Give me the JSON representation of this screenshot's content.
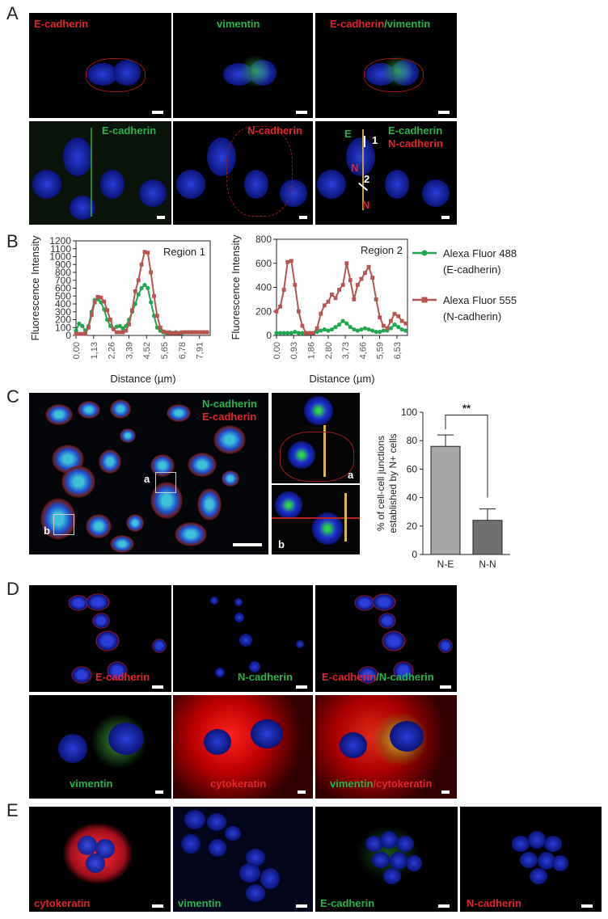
{
  "panels": {
    "A": {
      "letter": "A",
      "row1": [
        "E-cadherin",
        "vimentin",
        "E-cadherin",
        "/vimentin"
      ],
      "row2": [
        "E-cadherin",
        "N-cadherin",
        "E-cadherin",
        "N-cadherin"
      ],
      "markers": {
        "E": "E",
        "N1": "N",
        "N2": "N",
        "r1": "1",
        "r2": "2"
      }
    },
    "B": {
      "letter": "B"
    },
    "C": {
      "letter": "C",
      "labels": {
        "top": "N-cadherin",
        "bottom": "E-cadherin",
        "box_a": "a",
        "box_b": "b",
        "inset_a": "a",
        "inset_b": "b"
      }
    },
    "D": {
      "letter": "D",
      "row1": [
        "E-cadherin",
        "N-cadherin",
        "E-cadherin",
        "/N-cadherin"
      ],
      "row2": [
        "vimentin",
        "cytokeratin",
        "vimentin",
        "/cytokeratin"
      ]
    },
    "E": {
      "letter": "E",
      "labels": [
        "cytokeratin",
        "vimentin",
        "E-cadherin",
        "N-cadherin"
      ]
    }
  },
  "chart_data": [
    {
      "type": "line",
      "title": "Region 1",
      "ylabel": "Fluorescence Intensity",
      "xlabel": "Distance (µm)",
      "ylim": [
        0,
        1200
      ],
      "yticks": [
        "0",
        "100",
        "200",
        "300",
        "400",
        "500",
        "600",
        "700",
        "800",
        "900",
        "1000",
        "1100",
        "1200"
      ],
      "xticks": [
        "0,00",
        "1,13",
        "2,26",
        "3,39",
        "4,52",
        "5,65",
        "6,78",
        "7,91"
      ],
      "xlim": [
        0,
        8.6
      ],
      "series": [
        {
          "name": "Alexa Fluor 488 (E-cadherin)",
          "color": "#1fa84f",
          "marker": "circle",
          "x": [
            0,
            0.2,
            0.4,
            0.6,
            0.8,
            1.0,
            1.2,
            1.4,
            1.6,
            1.8,
            2.0,
            2.2,
            2.4,
            2.6,
            2.8,
            3.0,
            3.2,
            3.4,
            3.6,
            3.8,
            4.0,
            4.2,
            4.4,
            4.6,
            4.8,
            5.0,
            5.2,
            5.4,
            5.6,
            5.8,
            6.0,
            6.2,
            6.4,
            6.6,
            6.8,
            7.0,
            7.2,
            7.4,
            7.6,
            7.8,
            8.0,
            8.2,
            8.4
          ],
          "y": [
            60,
            150,
            120,
            60,
            120,
            300,
            450,
            460,
            420,
            330,
            200,
            120,
            80,
            110,
            120,
            90,
            120,
            200,
            300,
            400,
            520,
            600,
            640,
            600,
            420,
            250,
            100,
            60,
            40,
            30,
            40,
            30,
            40,
            30,
            30,
            40,
            40,
            40,
            40,
            40,
            40,
            40,
            40
          ]
        },
        {
          "name": "Alexa Fluor 555 (N-cadherin)",
          "color": "#b85450",
          "marker": "square",
          "x": [
            0,
            0.2,
            0.4,
            0.6,
            0.8,
            1.0,
            1.2,
            1.4,
            1.6,
            1.8,
            2.0,
            2.2,
            2.4,
            2.6,
            2.8,
            3.0,
            3.2,
            3.4,
            3.6,
            3.8,
            4.0,
            4.2,
            4.4,
            4.6,
            4.8,
            5.0,
            5.2,
            5.4,
            5.6,
            5.8,
            6.0,
            6.2,
            6.4,
            6.6,
            6.8,
            7.0,
            7.2,
            7.4,
            7.6,
            7.8,
            8.0,
            8.2,
            8.4
          ],
          "y": [
            20,
            20,
            20,
            20,
            100,
            260,
            420,
            490,
            480,
            430,
            320,
            200,
            80,
            40,
            40,
            40,
            60,
            140,
            320,
            560,
            700,
            900,
            1060,
            1050,
            800,
            500,
            250,
            100,
            50,
            40,
            30,
            30,
            30,
            30,
            40,
            40,
            40,
            40,
            40,
            40,
            40,
            40,
            40
          ]
        }
      ]
    },
    {
      "type": "line",
      "title": "Region 2",
      "ylabel": "Fluorescence Intensity",
      "xlabel": "Distance (µm)",
      "ylim": [
        0,
        800
      ],
      "yticks": [
        "0",
        "200",
        "400",
        "600",
        "800"
      ],
      "xticks": [
        "0,00",
        "0,93",
        "1,86",
        "2,80",
        "3,73",
        "4,66",
        "5,59",
        "6,53"
      ],
      "xlim": [
        0,
        7.1
      ],
      "series": [
        {
          "name": "Alexa Fluor 488 (E-cadherin)",
          "color": "#1fa84f",
          "marker": "circle",
          "x": [
            0,
            0.2,
            0.4,
            0.6,
            0.8,
            1.0,
            1.2,
            1.4,
            1.6,
            1.8,
            2.0,
            2.2,
            2.4,
            2.6,
            2.8,
            3.0,
            3.2,
            3.4,
            3.6,
            3.8,
            4.0,
            4.2,
            4.4,
            4.6,
            4.8,
            5.0,
            5.2,
            5.4,
            5.6,
            5.8,
            6.0,
            6.2,
            6.4,
            6.6,
            6.8,
            7.0
          ],
          "y": [
            20,
            20,
            20,
            20,
            20,
            30,
            20,
            20,
            20,
            20,
            20,
            30,
            40,
            50,
            40,
            50,
            70,
            90,
            120,
            100,
            70,
            50,
            40,
            50,
            60,
            50,
            40,
            30,
            30,
            40,
            40,
            60,
            90,
            70,
            50,
            40
          ]
        },
        {
          "name": "Alexa Fluor 555 (N-cadherin)",
          "color": "#b85450",
          "marker": "square",
          "x": [
            0,
            0.2,
            0.4,
            0.6,
            0.8,
            1.0,
            1.2,
            1.4,
            1.6,
            1.8,
            2.0,
            2.2,
            2.4,
            2.6,
            2.8,
            3.0,
            3.2,
            3.4,
            3.6,
            3.8,
            4.0,
            4.2,
            4.4,
            4.6,
            4.8,
            5.0,
            5.2,
            5.4,
            5.6,
            5.8,
            6.0,
            6.2,
            6.4,
            6.6,
            6.8,
            7.0
          ],
          "y": [
            200,
            240,
            380,
            610,
            620,
            420,
            200,
            80,
            20,
            20,
            20,
            60,
            180,
            250,
            280,
            340,
            310,
            380,
            420,
            600,
            460,
            300,
            420,
            470,
            520,
            570,
            480,
            300,
            150,
            80,
            60,
            120,
            180,
            160,
            120,
            100
          ]
        }
      ]
    },
    {
      "type": "bar",
      "ylabel": "% of cell-cell junctions established by N+ cells",
      "categories": [
        "N-E",
        "N-N"
      ],
      "values": [
        76,
        24
      ],
      "errors": [
        8,
        8
      ],
      "colors": [
        "#a6a6a8",
        "#707070"
      ],
      "ylim": [
        0,
        100
      ],
      "yticks": [
        "0",
        "20",
        "40",
        "60",
        "80",
        "100"
      ],
      "annotation": "**"
    }
  ],
  "legend": {
    "items": [
      {
        "line1": "Alexa Fluor 488",
        "line2": "(E-cadherin)",
        "color": "#1fa84f",
        "marker": "circle"
      },
      {
        "line1": "Alexa Fluor 555",
        "line2": "(N-cadherin)",
        "color": "#b85450",
        "marker": "square"
      }
    ]
  }
}
